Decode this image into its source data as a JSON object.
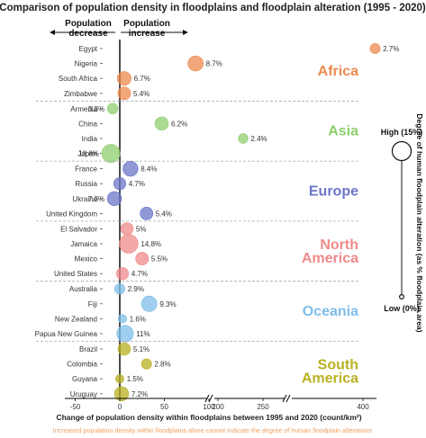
{
  "chart_data": {
    "type": "scatter",
    "title": "Comparison of population density in floodplains and floodplain alteration (1995 - 2020)",
    "xlabel": "Change of population density within floodplains between 1995 and 2020 (count/km²)",
    "note": "Increased population density within floodplains alone cannot indicate the degree of human floodplain alterations",
    "direction_labels": {
      "decrease": [
        "Population",
        "decrease"
      ],
      "increase": [
        "Population",
        "increase"
      ]
    },
    "x_ticks": [
      -50,
      0,
      50,
      100,
      200,
      250,
      400
    ],
    "size_legend": {
      "title": "Degree of human floodplain alteration (as % floodplain area)",
      "high": "High (15%)",
      "low": "Low (0%)"
    },
    "regions": [
      {
        "name": "Africa",
        "color": "#ee8a4f",
        "countries": [
          {
            "country": "Egypt",
            "x": 410,
            "alteration": 2.7,
            "label": "2.7%"
          },
          {
            "country": "Nigeria",
            "x": 85,
            "alteration": 8.7,
            "label": "8.7%"
          },
          {
            "country": "South Africa",
            "x": 5,
            "alteration": 6.7,
            "label": "6.7%"
          },
          {
            "country": "Zimbabwe",
            "x": 5,
            "alteration": 5.4,
            "label": "5.4%"
          }
        ]
      },
      {
        "name": "Asia",
        "color": "#8fcf6e",
        "countries": [
          {
            "country": "Armenia",
            "x": -8,
            "alteration": 3.3,
            "label": "3.3%"
          },
          {
            "country": "China",
            "x": 47,
            "alteration": 6.2,
            "label": "6.2%"
          },
          {
            "country": "India",
            "x": 228,
            "alteration": 2.4,
            "label": "2.4%"
          },
          {
            "country": "Japan",
            "x": -10,
            "alteration": 13.8,
            "label": "13.8%"
          }
        ]
      },
      {
        "name": "Europe",
        "color": "#6b75c8",
        "countries": [
          {
            "country": "France",
            "x": 12,
            "alteration": 8.4,
            "label": "8.4%"
          },
          {
            "country": "Russia",
            "x": 0,
            "alteration": 4.7,
            "label": "4.7%"
          },
          {
            "country": "Ukraine",
            "x": -6,
            "alteration": 7.3,
            "label": "7.3%"
          },
          {
            "country": "United Kingdom",
            "x": 30,
            "alteration": 5.4,
            "label": "5.4%"
          }
        ]
      },
      {
        "name": "North America",
        "lines": [
          "North",
          "America"
        ],
        "color": "#f08a8a",
        "countries": [
          {
            "country": "El Salvador",
            "x": 8,
            "alteration": 5.0,
            "label": "5%"
          },
          {
            "country": "Jamaica",
            "x": 10,
            "alteration": 14.8,
            "label": "14.8%"
          },
          {
            "country": "Mexico",
            "x": 25,
            "alteration": 5.5,
            "label": "5.5%"
          },
          {
            "country": "United States",
            "x": 3,
            "alteration": 4.7,
            "label": "4.7%"
          }
        ]
      },
      {
        "name": "Oceania",
        "color": "#7fbde8",
        "countries": [
          {
            "country": "Australia",
            "x": 0,
            "alteration": 2.9,
            "label": "2.9%"
          },
          {
            "country": "Fiji",
            "x": 33,
            "alteration": 9.3,
            "label": "9.3%"
          },
          {
            "country": "New Zealand",
            "x": 3,
            "alteration": 1.6,
            "label": "1.6%"
          },
          {
            "country": "Papua New Guinea",
            "x": 6,
            "alteration": 11.0,
            "label": "11%"
          }
        ]
      },
      {
        "name": "South America",
        "lines": [
          "South",
          "America"
        ],
        "color": "#b9b022",
        "countries": [
          {
            "country": "Brazil",
            "x": 5,
            "alteration": 5.1,
            "label": "5.1%"
          },
          {
            "country": "Colombia",
            "x": 30,
            "alteration": 2.8,
            "label": "2.8%"
          },
          {
            "country": "Guyana",
            "x": 0,
            "alteration": 1.5,
            "label": "1.5%"
          },
          {
            "country": "Uruguay",
            "x": 2,
            "alteration": 7.2,
            "label": "7.2%"
          }
        ]
      }
    ]
  }
}
